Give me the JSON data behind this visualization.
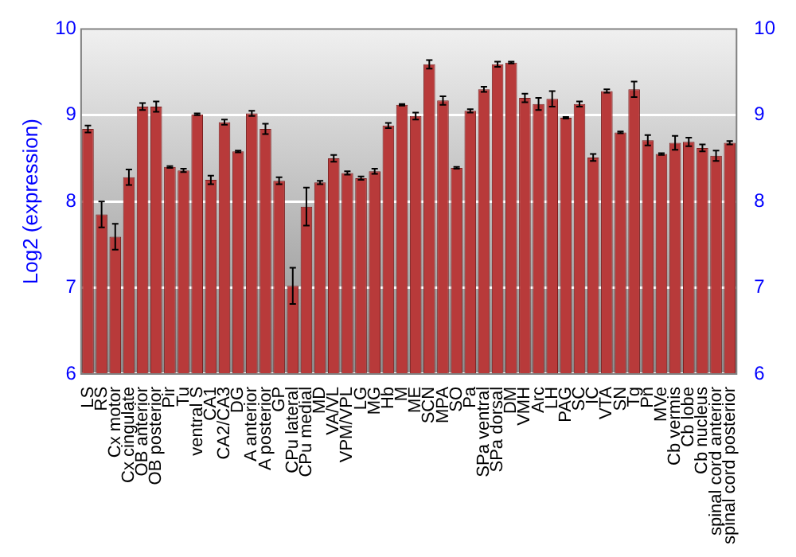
{
  "chart_data": {
    "type": "bar",
    "ylabel": "Log2 (expression)",
    "categories": [
      "LS",
      "RS",
      "Cx motor",
      "Cx cingulate",
      "OB anterior",
      "OB posterior",
      "Pir",
      "Tu",
      "ventral S",
      "CA1",
      "CA2/CA3",
      "DG",
      "A anterior",
      "A posterior",
      "GP",
      "CPu lateral",
      "CPu medial",
      "MD",
      "VA/VL",
      "VPM/VPL",
      "LG",
      "MG",
      "Hb",
      "M",
      "ME",
      "SCN",
      "MPA",
      "SO",
      "Pa",
      "SPa ventral",
      "SPa dorsal",
      "DM",
      "VMH",
      "Arc",
      "LH",
      "PAG",
      "SC",
      "IC",
      "VTA",
      "SN",
      "Tg",
      "Pn",
      "MVe",
      "Cb vermis",
      "Cb lobe",
      "Cb nucleus",
      "spinal cord anterior",
      "spinal cord posterior"
    ],
    "values": [
      8.84,
      7.85,
      7.59,
      8.28,
      9.1,
      9.1,
      8.4,
      8.36,
      9.01,
      8.25,
      8.92,
      8.58,
      9.02,
      8.84,
      8.24,
      7.02,
      7.94,
      8.22,
      8.5,
      8.33,
      8.27,
      8.35,
      8.88,
      9.12,
      8.99,
      9.59,
      9.17,
      8.39,
      9.05,
      9.3,
      9.59,
      9.61,
      9.2,
      9.13,
      9.19,
      8.97,
      9.13,
      8.51,
      9.28,
      8.8,
      9.3,
      8.71,
      8.55,
      8.68,
      8.69,
      8.62,
      8.53,
      8.68
    ],
    "errors": [
      0.04,
      0.15,
      0.15,
      0.09,
      0.04,
      0.06,
      0.01,
      0.02,
      0.01,
      0.05,
      0.03,
      0.01,
      0.03,
      0.06,
      0.04,
      0.21,
      0.22,
      0.02,
      0.04,
      0.02,
      0.02,
      0.03,
      0.03,
      0.01,
      0.04,
      0.05,
      0.05,
      0.01,
      0.02,
      0.03,
      0.03,
      0.01,
      0.05,
      0.07,
      0.09,
      0.01,
      0.03,
      0.04,
      0.02,
      0.01,
      0.09,
      0.06,
      0.01,
      0.08,
      0.05,
      0.04,
      0.06,
      0.02
    ],
    "color": "#b83a3a",
    "ylim": [
      6,
      10
    ],
    "yticks": [
      6,
      7,
      8,
      9,
      10
    ],
    "y2lim": [
      6,
      10
    ],
    "y2ticks": [
      6,
      7,
      8,
      9,
      10
    ],
    "grid": "y"
  }
}
